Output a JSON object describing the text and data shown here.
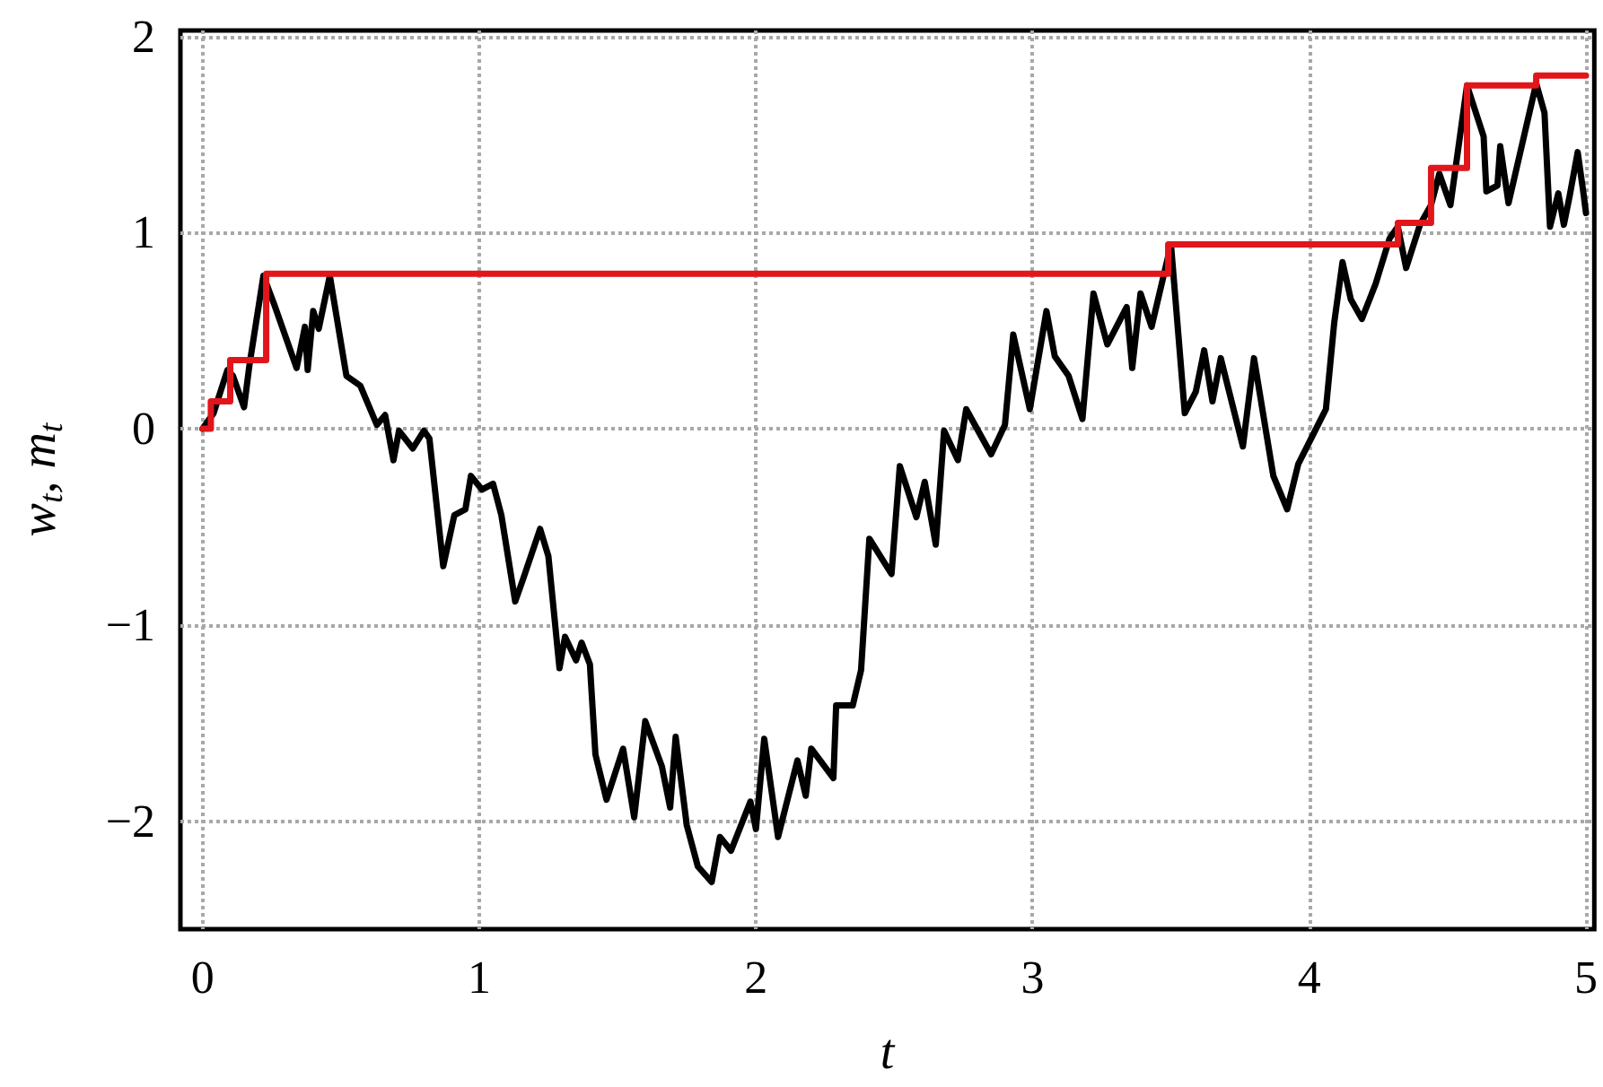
{
  "chart_data": {
    "type": "line",
    "xlabel": "t",
    "ylabel": "w$_{t}$, m$_{t}$",
    "xlim": [
      -0.08,
      5.03
    ],
    "ylim": [
      -2.55,
      2.03
    ],
    "xticks": [
      0,
      1,
      2,
      3,
      4,
      5
    ],
    "yticks": [
      {
        "value": -2,
        "label": "−2"
      },
      {
        "value": -1,
        "label": "−1"
      },
      0,
      1,
      2
    ],
    "grid": true,
    "marker": "none",
    "line_style": "solid",
    "series": [
      {
        "color": "#000000",
        "x": [
          0,
          0.04,
          0.09,
          0.11,
          0.15,
          0.17,
          0.22,
          0.26,
          0.34,
          0.37,
          0.38,
          0.4,
          0.42,
          0.46,
          0.52,
          0.57,
          0.63,
          0.66,
          0.69,
          0.71,
          0.76,
          0.8,
          0.82,
          0.87,
          0.91,
          0.95,
          0.97,
          1.01,
          1.05,
          1.08,
          1.13,
          1.16,
          1.22,
          1.25,
          1.29,
          1.31,
          1.35,
          1.37,
          1.4,
          1.42,
          1.46,
          1.52,
          1.56,
          1.6,
          1.66,
          1.69,
          1.71,
          1.75,
          1.79,
          1.84,
          1.87,
          1.91,
          1.98,
          2.0,
          2.03,
          2.08,
          2.15,
          2.18,
          2.2,
          2.28,
          2.29,
          2.35,
          2.38,
          2.41,
          2.45,
          2.49,
          2.52,
          2.58,
          2.61,
          2.65,
          2.68,
          2.73,
          2.76,
          2.85,
          2.9,
          2.93,
          2.99,
          3.05,
          3.08,
          3.13,
          3.18,
          3.22,
          3.27,
          3.34,
          3.36,
          3.39,
          3.43,
          3.5,
          3.55,
          3.59,
          3.62,
          3.65,
          3.68,
          3.76,
          3.8,
          3.87,
          3.92,
          3.96,
          4.01,
          4.06,
          4.09,
          4.12,
          4.15,
          4.19,
          4.24,
          4.29,
          4.32,
          4.35,
          4.4,
          4.44,
          4.47,
          4.51,
          4.57,
          4.63,
          4.64,
          4.68,
          4.69,
          4.72,
          4.82,
          4.85,
          4.87,
          4.9,
          4.92,
          4.94,
          4.97,
          4.99,
          5.0
        ],
        "values": [
          0,
          0.08,
          0.3,
          0.27,
          0.11,
          0.33,
          0.78,
          0.63,
          0.31,
          0.52,
          0.3,
          0.6,
          0.51,
          0.78,
          0.27,
          0.22,
          0.02,
          0.07,
          -0.16,
          -0.01,
          -0.1,
          -0.01,
          -0.05,
          -0.7,
          -0.44,
          -0.41,
          -0.24,
          -0.31,
          -0.28,
          -0.44,
          -0.88,
          -0.76,
          -0.51,
          -0.65,
          -1.22,
          -1.06,
          -1.18,
          -1.09,
          -1.2,
          -1.66,
          -1.89,
          -1.63,
          -1.98,
          -1.49,
          -1.72,
          -1.93,
          -1.57,
          -2.02,
          -2.23,
          -2.31,
          -2.08,
          -2.15,
          -1.9,
          -2.04,
          -1.58,
          -2.08,
          -1.69,
          -1.87,
          -1.63,
          -1.78,
          -1.41,
          -1.41,
          -1.23,
          -0.56,
          -0.65,
          -0.74,
          -0.19,
          -0.45,
          -0.27,
          -0.59,
          -0.01,
          -0.16,
          0.1,
          -0.13,
          0.02,
          0.48,
          0.1,
          0.6,
          0.37,
          0.27,
          0.05,
          0.69,
          0.43,
          0.62,
          0.31,
          0.69,
          0.52,
          0.94,
          0.08,
          0.19,
          0.4,
          0.14,
          0.36,
          -0.09,
          0.36,
          -0.24,
          -0.41,
          -0.18,
          -0.04,
          0.1,
          0.54,
          0.85,
          0.66,
          0.56,
          0.74,
          0.97,
          1.03,
          0.82,
          1.04,
          1.14,
          1.3,
          1.14,
          1.75,
          1.49,
          1.21,
          1.24,
          1.44,
          1.15,
          1.76,
          1.61,
          1.03,
          1.2,
          1.04,
          1.18,
          1.41,
          1.21,
          1.1
        ]
      },
      {
        "type": "step",
        "color": "#e0161b",
        "x": [
          0,
          0.03,
          0.1,
          0.23,
          3.49,
          4.32,
          4.44,
          4.57,
          4.82,
          5.0
        ],
        "values": [
          0,
          0.14,
          0.35,
          0.79,
          0.94,
          1.05,
          1.33,
          1.75,
          1.8,
          1.8
        ]
      }
    ]
  }
}
